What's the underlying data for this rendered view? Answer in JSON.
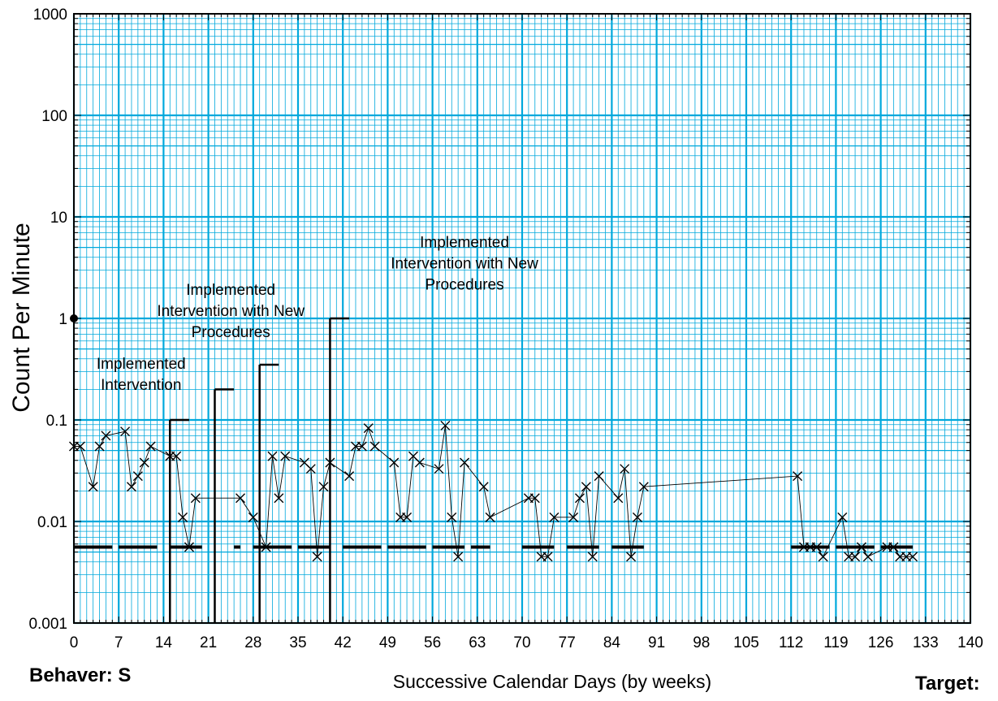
{
  "chart_data": {
    "type": "line",
    "chart_kind": "standard celeration chart",
    "y_scale": "log",
    "ylim": [
      0.001,
      1000
    ],
    "xlim": [
      0,
      140
    ],
    "x_ticks": [
      "0",
      "7",
      "14",
      "21",
      "28",
      "35",
      "42",
      "49",
      "56",
      "63",
      "70",
      "77",
      "84",
      "91",
      "98",
      "105",
      "112",
      "119",
      "126",
      "133",
      "140"
    ],
    "y_ticks": [
      "0.001",
      "0.01",
      "0.1",
      "1",
      "10",
      "100",
      "1000"
    ],
    "xlabel": "Successive Calendar Days (by weeks)",
    "ylabel": "Count Per Minute",
    "grid": true,
    "grid_color": "#00A8DC",
    "plot_background": "#ffffff",
    "phase_change_lines": [
      {
        "x": 15,
        "height_at": 0.1
      },
      {
        "x": 22,
        "height_at": 0.2
      },
      {
        "x": 29,
        "height_at": 0.35
      },
      {
        "x": 40,
        "height_at": 1
      }
    ],
    "annotations": [
      {
        "lines": [
          "Implemented",
          "Intervention"
        ],
        "x": 10.5,
        "y": 0.32
      },
      {
        "lines": [
          "Implemented",
          "Intervention with New",
          "Procedures"
        ],
        "x": 24.5,
        "y": 1.7
      },
      {
        "lines": [
          "Implemented",
          "Intervention with New",
          "Procedures"
        ],
        "x": 61,
        "y": 5.0
      }
    ],
    "record_floor": {
      "value": 0.0056,
      "segments": [
        [
          0,
          6
        ],
        [
          7,
          13
        ],
        [
          15,
          20
        ],
        [
          25,
          26
        ],
        [
          28,
          34
        ],
        [
          35,
          40
        ],
        [
          42,
          48
        ],
        [
          49,
          55
        ],
        [
          56,
          61
        ],
        [
          62,
          65
        ],
        [
          70,
          75
        ],
        [
          77,
          82
        ],
        [
          84,
          89
        ],
        [
          112,
          118
        ],
        [
          119,
          125
        ],
        [
          126,
          131
        ]
      ]
    },
    "reference_point": {
      "x": 0,
      "y": 1
    },
    "series": [
      {
        "marker": "x",
        "points": [
          [
            0,
            0.055
          ],
          [
            1,
            0.055
          ],
          [
            3,
            0.022
          ],
          [
            4,
            0.055
          ],
          [
            5,
            0.07
          ],
          [
            8,
            0.077
          ],
          [
            9,
            0.022
          ],
          [
            10,
            0.028
          ],
          [
            11,
            0.038
          ],
          [
            12,
            0.055
          ],
          [
            15,
            0.044
          ],
          [
            16,
            0.044
          ],
          [
            17,
            0.011
          ],
          [
            18,
            0.0056
          ],
          [
            19,
            0.017
          ],
          [
            26,
            0.017
          ],
          [
            28,
            0.011
          ],
          [
            30,
            0.0056
          ],
          [
            31,
            0.044
          ],
          [
            32,
            0.017
          ],
          [
            33,
            0.044
          ],
          [
            36,
            0.038
          ],
          [
            37,
            0.033
          ],
          [
            38,
            0.0045
          ],
          [
            39,
            0.022
          ],
          [
            40,
            0.038
          ],
          [
            43,
            0.028
          ],
          [
            44,
            0.055
          ],
          [
            45,
            0.055
          ],
          [
            46,
            0.083
          ],
          [
            47,
            0.055
          ],
          [
            50,
            0.038
          ],
          [
            51,
            0.011
          ],
          [
            52,
            0.011
          ],
          [
            53,
            0.044
          ],
          [
            54,
            0.038
          ],
          [
            57,
            0.033
          ],
          [
            58,
            0.088
          ],
          [
            59,
            0.011
          ],
          [
            60,
            0.0045
          ],
          [
            61,
            0.038
          ],
          [
            64,
            0.022
          ],
          [
            65,
            0.011
          ],
          [
            71,
            0.017
          ],
          [
            72,
            0.017
          ],
          [
            73,
            0.0045
          ],
          [
            74,
            0.0045
          ],
          [
            75,
            0.011
          ],
          [
            78,
            0.011
          ],
          [
            79,
            0.017
          ],
          [
            80,
            0.022
          ],
          [
            81,
            0.0045
          ],
          [
            82,
            0.028
          ],
          [
            85,
            0.017
          ],
          [
            86,
            0.033
          ],
          [
            87,
            0.0045
          ],
          [
            88,
            0.011
          ],
          [
            89,
            0.022
          ],
          [
            113,
            0.028
          ],
          [
            114,
            0.0056
          ],
          [
            115,
            0.0056
          ],
          [
            116,
            0.0056
          ],
          [
            117,
            0.0045
          ],
          [
            120,
            0.011
          ],
          [
            121,
            0.0045
          ],
          [
            122,
            0.0045
          ],
          [
            123,
            0.0056
          ],
          [
            124,
            0.0045
          ],
          [
            127,
            0.0056
          ],
          [
            128,
            0.0056
          ],
          [
            129,
            0.0045
          ],
          [
            130,
            0.0045
          ],
          [
            131,
            0.0045
          ]
        ]
      }
    ]
  },
  "info": {
    "behaver": "Behaver: S",
    "target": "Target:"
  }
}
